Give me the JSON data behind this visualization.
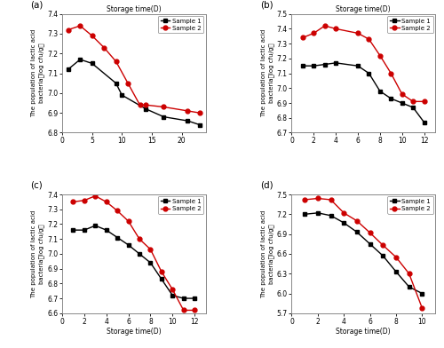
{
  "panels": [
    {
      "label": "(a)",
      "s1_x": [
        1,
        3,
        5,
        9,
        10,
        14,
        17,
        21,
        23
      ],
      "s1_y": [
        7.12,
        7.17,
        7.15,
        7.05,
        6.99,
        6.92,
        6.88,
        6.86,
        6.84
      ],
      "s2_x": [
        1,
        3,
        5,
        7,
        9,
        11,
        13,
        14,
        17,
        21,
        23
      ],
      "s2_y": [
        7.32,
        7.34,
        7.29,
        7.23,
        7.16,
        7.05,
        6.94,
        6.94,
        6.93,
        6.91,
        6.9
      ],
      "ylim": [
        6.8,
        7.4
      ],
      "yticks": [
        6.8,
        6.9,
        7.0,
        7.1,
        7.2,
        7.3,
        7.4
      ],
      "xlim": [
        0,
        24
      ],
      "xticks": [
        0,
        5,
        10,
        15,
        20
      ],
      "xlabel": ""
    },
    {
      "label": "(b)",
      "s1_x": [
        1,
        2,
        3,
        4,
        6,
        7,
        8,
        9,
        10,
        11,
        12
      ],
      "s1_y": [
        7.15,
        7.15,
        7.16,
        7.17,
        7.15,
        7.1,
        6.98,
        6.93,
        6.9,
        6.87,
        6.77
      ],
      "s2_x": [
        1,
        2,
        3,
        4,
        6,
        7,
        8,
        9,
        10,
        11,
        12
      ],
      "s2_y": [
        7.34,
        7.37,
        7.42,
        7.4,
        7.37,
        7.33,
        7.22,
        7.1,
        6.96,
        6.91,
        6.91
      ],
      "ylim": [
        6.7,
        7.5
      ],
      "yticks": [
        6.7,
        6.8,
        6.9,
        7.0,
        7.1,
        7.2,
        7.3,
        7.4,
        7.5
      ],
      "xlim": [
        0,
        13
      ],
      "xticks": [
        0,
        2,
        4,
        6,
        8,
        10,
        12
      ],
      "xlabel": ""
    },
    {
      "label": "(c)",
      "s1_x": [
        1,
        2,
        3,
        4,
        5,
        6,
        7,
        8,
        9,
        10,
        11,
        12
      ],
      "s1_y": [
        7.16,
        7.16,
        7.19,
        7.16,
        7.11,
        7.06,
        7.0,
        6.94,
        6.83,
        6.72,
        6.7,
        6.7
      ],
      "s2_x": [
        1,
        2,
        3,
        4,
        5,
        6,
        7,
        8,
        9,
        10,
        11,
        12
      ],
      "s2_y": [
        7.35,
        7.36,
        7.39,
        7.35,
        7.29,
        7.22,
        7.1,
        7.03,
        6.88,
        6.76,
        6.62,
        6.62
      ],
      "ylim": [
        6.6,
        7.4
      ],
      "yticks": [
        6.6,
        6.7,
        6.8,
        6.9,
        7.0,
        7.1,
        7.2,
        7.3,
        7.4
      ],
      "xlim": [
        0,
        13
      ],
      "xticks": [
        0,
        2,
        4,
        6,
        8,
        10,
        12
      ],
      "xlabel": "Storage time(D)"
    },
    {
      "label": "(d)",
      "s1_x": [
        1,
        2,
        3,
        4,
        5,
        6,
        7,
        8,
        9,
        10
      ],
      "s1_y": [
        7.2,
        7.22,
        7.18,
        7.07,
        6.93,
        6.75,
        6.57,
        6.33,
        6.1,
        6.0
      ],
      "s2_x": [
        1,
        2,
        3,
        4,
        5,
        6,
        7,
        8,
        9,
        10
      ],
      "s2_y": [
        7.42,
        7.44,
        7.42,
        7.22,
        7.1,
        6.92,
        6.73,
        6.55,
        6.3,
        5.78
      ],
      "ylim": [
        5.7,
        7.5
      ],
      "yticks": [
        5.7,
        6.0,
        6.3,
        6.6,
        6.9,
        7.2,
        7.5
      ],
      "xlim": [
        0,
        11
      ],
      "xticks": [
        0,
        2,
        4,
        6,
        8,
        10
      ],
      "xlabel": "Storage time(D)"
    }
  ],
  "s1_color": "#000000",
  "s2_color": "#cc0000",
  "s1_marker": "s",
  "s2_marker": "o",
  "ylabel_line1": "The population of lactic acid",
  "ylabel_line2": "bacteria（log cfu/g）",
  "xlabel_top": "Storage time(D)",
  "legend_labels": [
    "Sample 1",
    "Sample 2"
  ],
  "bg_color": "#ffffff",
  "linewidth": 1.0,
  "markersize": 3.5
}
